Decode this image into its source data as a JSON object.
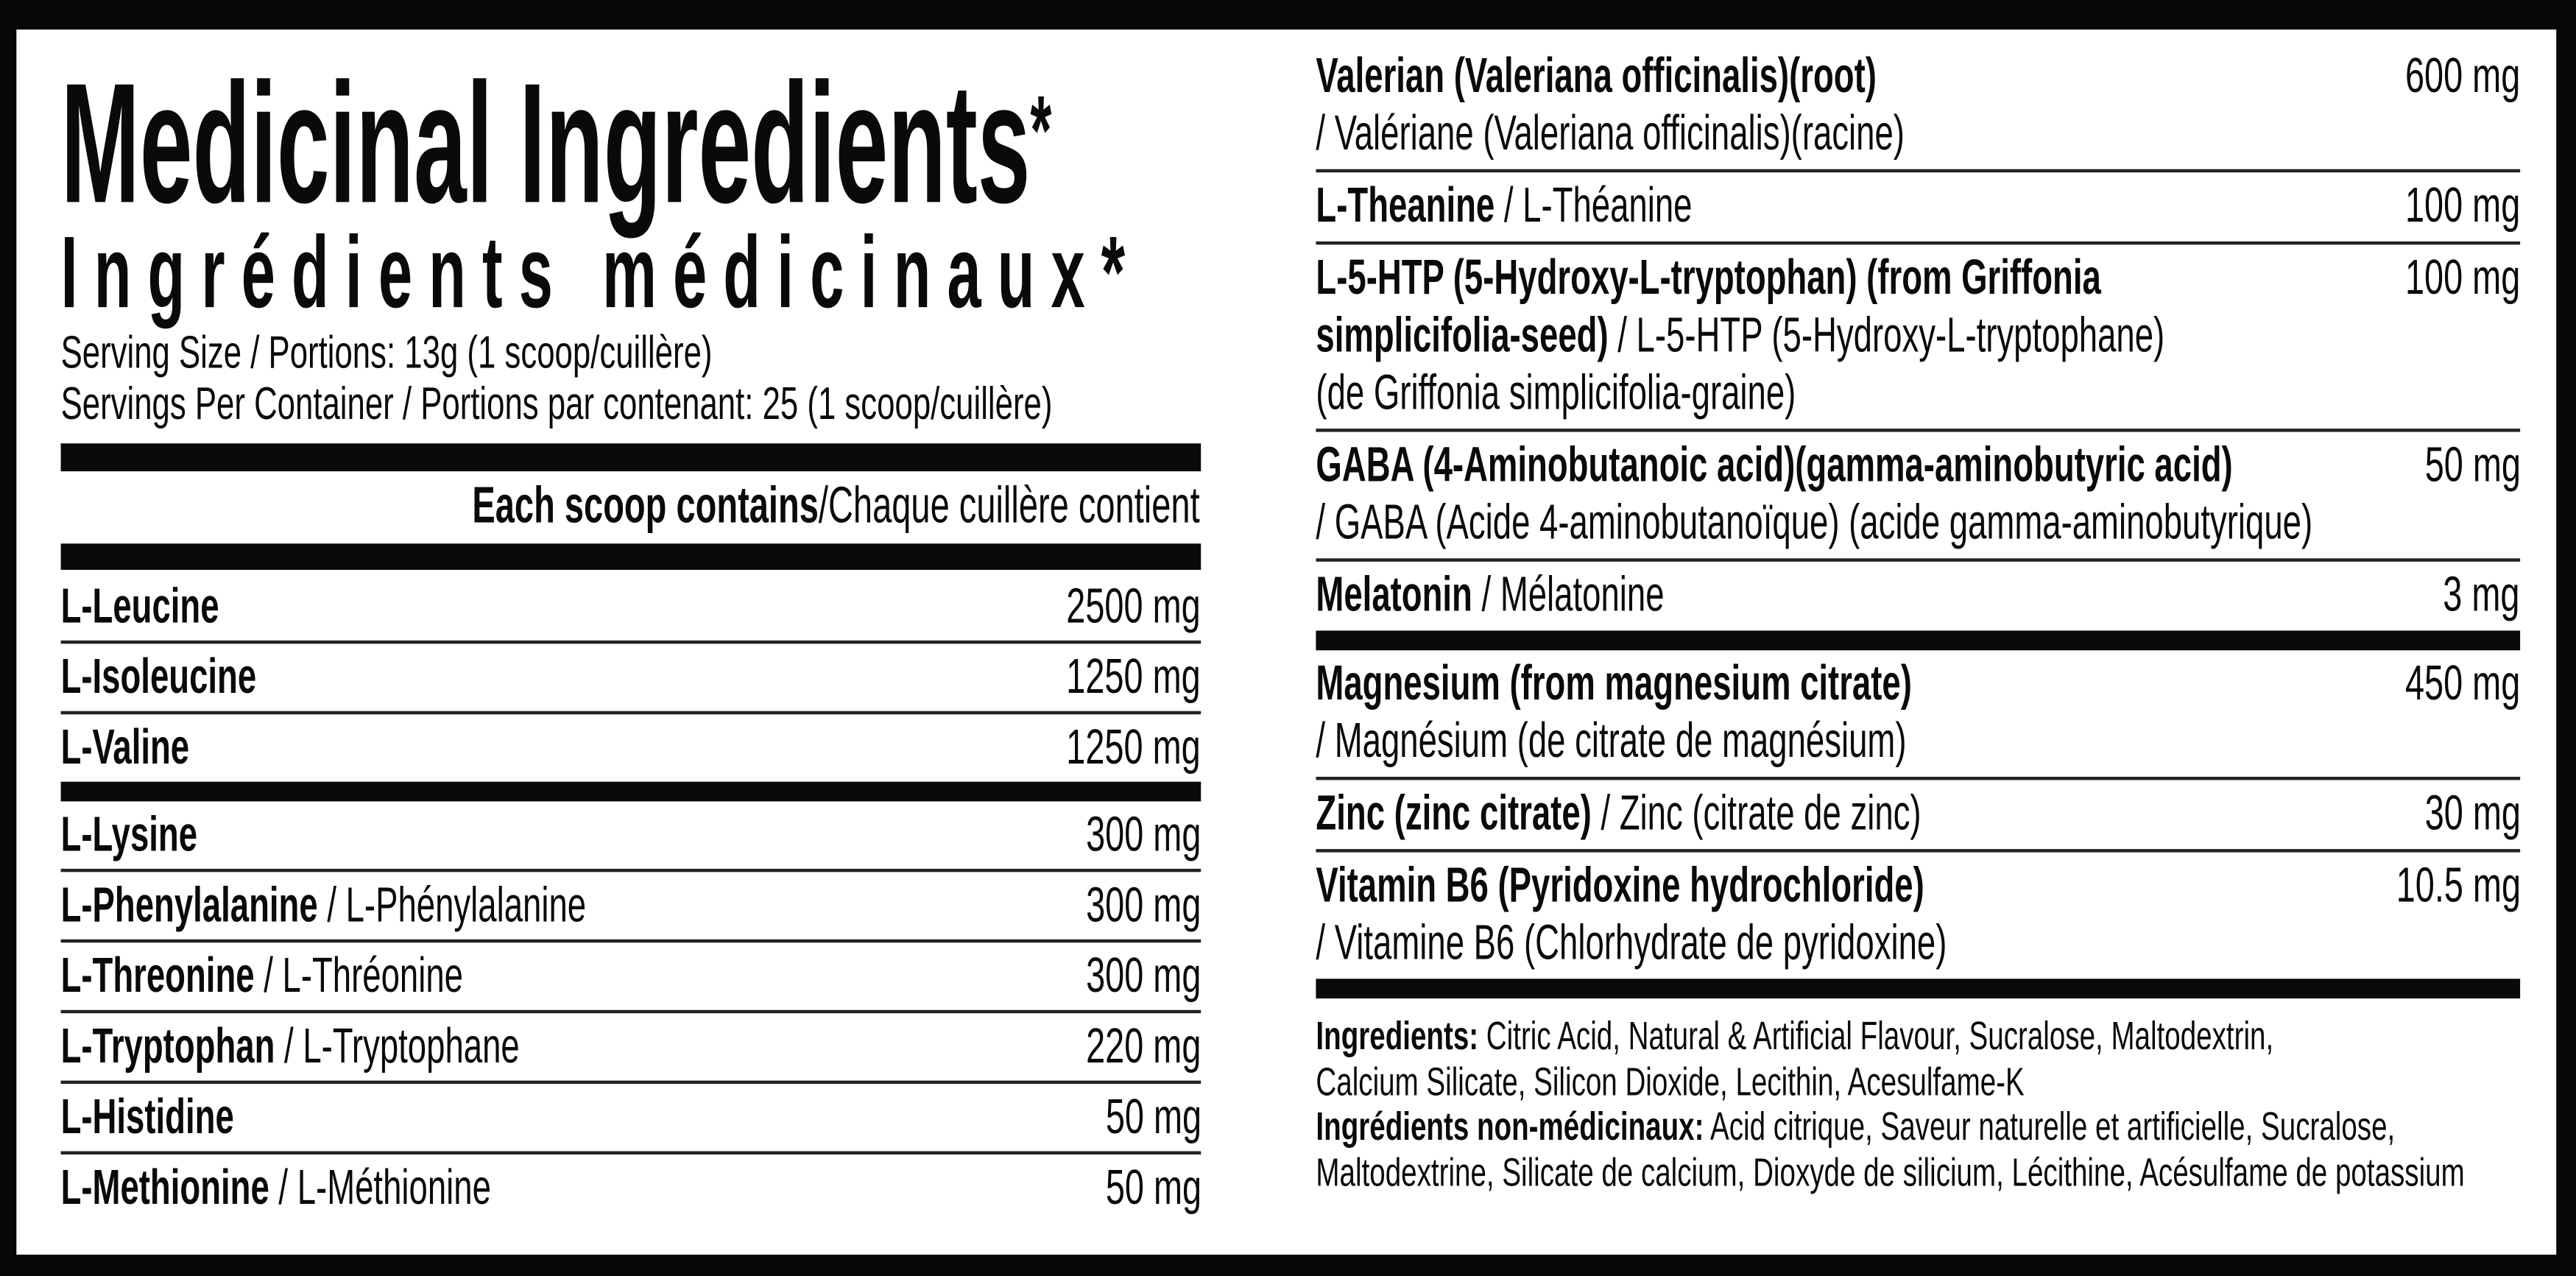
{
  "header": {
    "title": "Medicinal Ingredients",
    "title_mark": "*",
    "subtitle": "Ingrédients médicinaux*",
    "serving_size": "Serving Size / Portions: 13g (1 scoop/cuillère)",
    "servings_per_container": "Servings Per Container / Portions par contenant: 25 (1 scoop/cuillère)",
    "each_scoop_bold": "Each scoop contains",
    "each_scoop_regular": "/Chaque cuillère contient"
  },
  "left_items": [
    {
      "name": "L-Leucine",
      "fr": "",
      "amount": "2500 mg",
      "divider": "thin"
    },
    {
      "name": "L-Isoleucine",
      "fr": "",
      "amount": "1250 mg",
      "divider": "thin"
    },
    {
      "name": "L-Valine",
      "fr": "",
      "amount": "1250 mg",
      "divider": "thick"
    },
    {
      "name": "L-Lysine",
      "fr": "",
      "amount": "300 mg",
      "divider": "thin"
    },
    {
      "name": "L-Phenylalanine",
      "fr": " / L-Phénylalanine",
      "amount": "300 mg",
      "divider": "thin"
    },
    {
      "name": "L-Threonine",
      "fr": " / L-Thréonine",
      "amount": "300 mg",
      "divider": "thin"
    },
    {
      "name": "L-Tryptophan",
      "fr": " / L-Tryptophane",
      "amount": "220 mg",
      "divider": "thin"
    },
    {
      "name": "L-Histidine",
      "fr": "",
      "amount": "50 mg",
      "divider": "thin"
    },
    {
      "name": "L-Methionine",
      "fr": " / L-Méthionine",
      "amount": "50 mg",
      "divider": "none"
    }
  ],
  "right_items": [
    {
      "amount": "600 mg",
      "divider": "thin",
      "lines": [
        {
          "bold": "Valerian (Valeriana officinalis)(root)",
          "regular": ""
        },
        {
          "bold": "",
          "regular": "/ Valériane (Valeriana officinalis)(racine)"
        }
      ]
    },
    {
      "amount": "100 mg",
      "divider": "thin",
      "lines": [
        {
          "bold": "L-Theanine",
          "regular": " / L-Théanine"
        }
      ]
    },
    {
      "amount": "100 mg",
      "divider": "thin",
      "lines": [
        {
          "bold": "L-5-HTP (5-Hydroxy-L-tryptophan) (from Griffonia",
          "regular": ""
        },
        {
          "bold": "simplicifolia-seed)",
          "regular": " / L-5-HTP (5-Hydroxy-L-tryptophane)"
        },
        {
          "bold": "",
          "regular": "(de Griffonia simplicifolia-graine)"
        }
      ]
    },
    {
      "amount": "50 mg",
      "divider": "thin",
      "lines": [
        {
          "bold": "GABA (4-Aminobutanoic acid)(gamma-aminobutyric acid)",
          "regular": ""
        },
        {
          "bold": "",
          "regular": "/ GABA (Acide 4-aminobutanoïque) (acide gamma-aminobutyrique)"
        }
      ]
    },
    {
      "amount": "3 mg",
      "divider": "thick",
      "lines": [
        {
          "bold": "Melatonin",
          "regular": " / Mélatonine"
        }
      ]
    },
    {
      "amount": "450 mg",
      "divider": "thin",
      "lines": [
        {
          "bold": "Magnesium (from magnesium citrate)",
          "regular": ""
        },
        {
          "bold": "",
          "regular": "/ Magnésium (de citrate de magnésium)"
        }
      ]
    },
    {
      "amount": "30 mg",
      "divider": "thin",
      "lines": [
        {
          "bold": "Zinc (zinc citrate)",
          "regular": " / Zinc (citrate de zinc)"
        }
      ]
    },
    {
      "amount": "10.5 mg",
      "divider": "thick",
      "lines": [
        {
          "bold": "Vitamin B6 (Pyridoxine hydrochloride)",
          "regular": ""
        },
        {
          "bold": "",
          "regular": "/  Vitamine B6 (Chlorhydrate de pyridoxine)"
        }
      ]
    }
  ],
  "non_medicinal": {
    "lines": [
      {
        "bold": "Ingredients:",
        "regular": " Citric Acid, Natural & Artificial Flavour, Sucralose, Maltodextrin,"
      },
      {
        "bold": "",
        "regular": "Calcium Silicate, Silicon Dioxide, Lecithin, Acesulfame-K"
      },
      {
        "bold": "Ingrédients non-médicinaux:",
        "regular": " Acid citrique, Saveur naturelle et artificielle, Sucralose,"
      },
      {
        "bold": "",
        "regular": "Maltodextrine, Silicate de calcium, Dioxyde de silicium, Lécithine, Acésulfame de potassium"
      }
    ]
  },
  "colors": {
    "ink": "#0a0a0a",
    "background": "#ffffff",
    "frame": "#070707"
  }
}
